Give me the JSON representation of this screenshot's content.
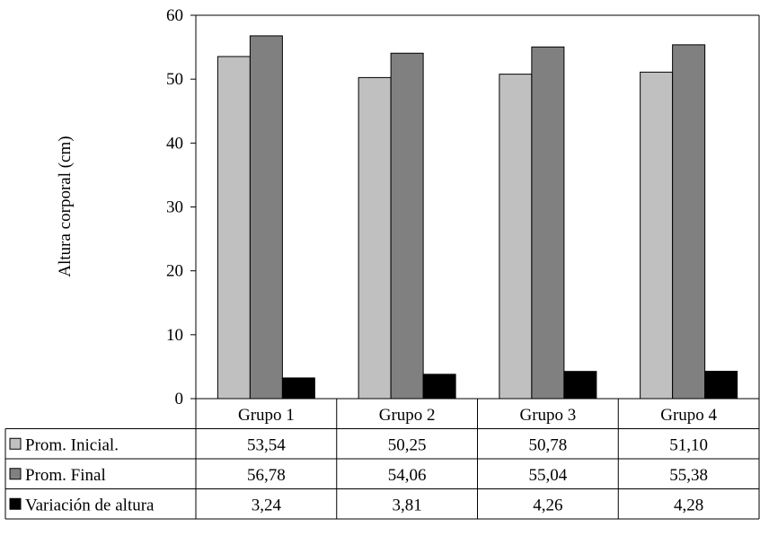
{
  "chart_data": {
    "type": "bar",
    "categories": [
      "Grupo 1",
      "Grupo 2",
      "Grupo 3",
      "Grupo 4"
    ],
    "series": [
      {
        "name": "Prom. Inicial.",
        "values": [
          53.54,
          50.25,
          50.78,
          51.1
        ],
        "labels": [
          "53,54",
          "50,25",
          "50,78",
          "51,10"
        ],
        "color": "#c0c0c0"
      },
      {
        "name": "Prom. Final",
        "values": [
          56.78,
          54.06,
          55.04,
          55.38
        ],
        "labels": [
          "56,78",
          "54,06",
          "55,04",
          "55,38"
        ],
        "color": "#808080"
      },
      {
        "name": "Variación de altura",
        "values": [
          3.24,
          3.81,
          4.26,
          4.28
        ],
        "labels": [
          "3,24",
          "3,81",
          "4,26",
          "4,28"
        ],
        "color": "#000000"
      }
    ],
    "title": "",
    "xlabel": "",
    "ylabel": "Altura corporal (cm)",
    "ylim": [
      0,
      60
    ],
    "yticks": [
      0,
      10,
      20,
      30,
      40,
      50,
      60
    ],
    "grid": false,
    "legend": "data-table-left"
  }
}
